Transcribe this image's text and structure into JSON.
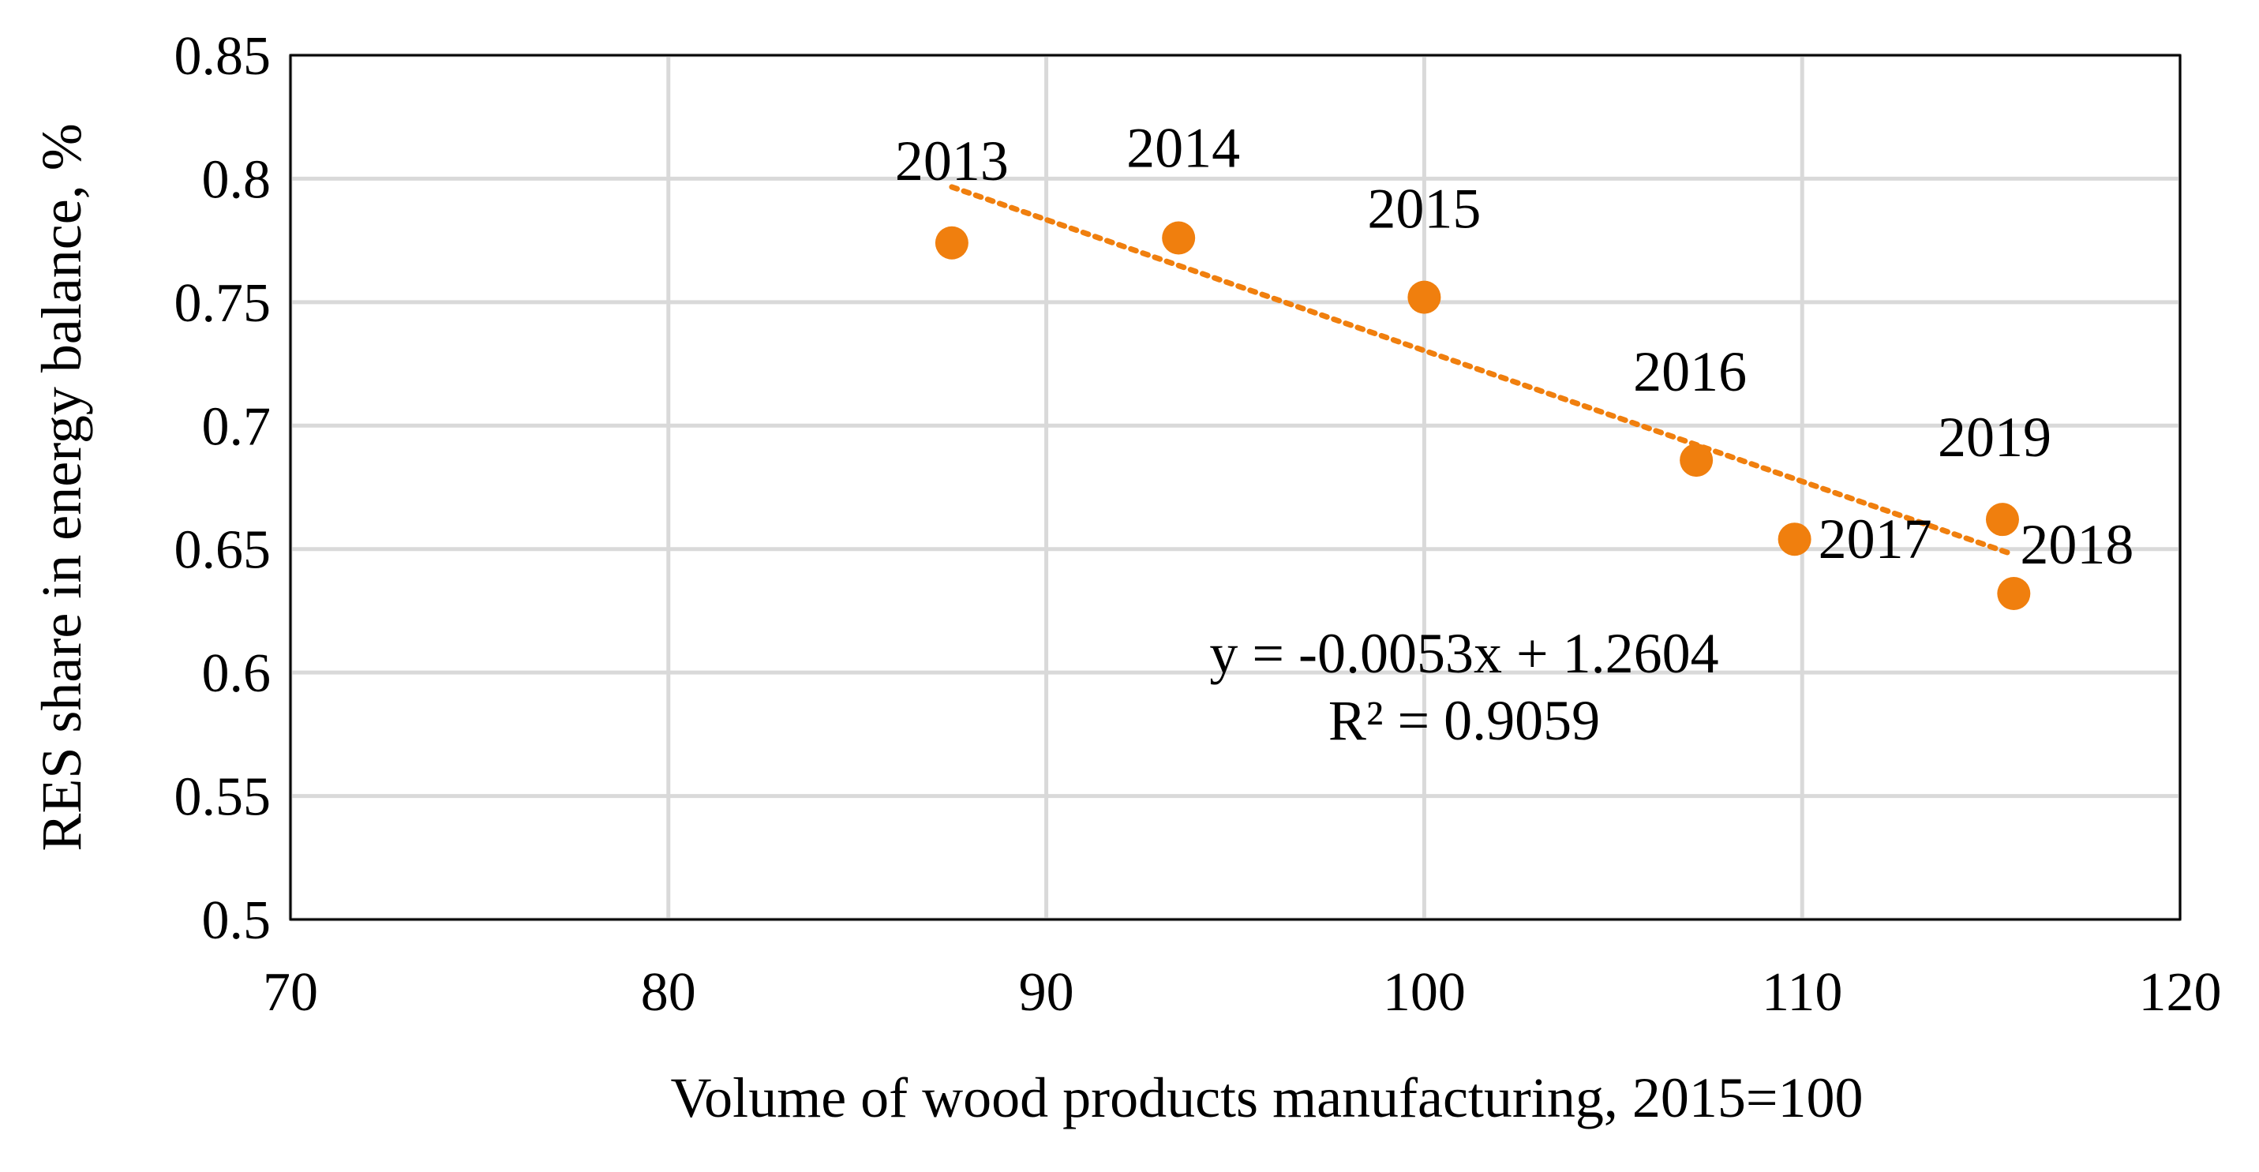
{
  "chart_data": {
    "type": "scatter",
    "title": "",
    "xlabel": "Volume of wood products manufacturing, 2015=100",
    "ylabel": "RES share in energy balance, %",
    "xlim": [
      70,
      120
    ],
    "ylim": [
      0.5,
      0.85
    ],
    "x_ticks": [
      70,
      80,
      90,
      100,
      110,
      120
    ],
    "x_tick_labels": [
      "70",
      "80",
      "90",
      "100",
      "110",
      "120"
    ],
    "y_ticks": [
      0.5,
      0.55,
      0.6,
      0.65,
      0.7,
      0.75,
      0.8,
      0.85
    ],
    "y_tick_labels": [
      "0.5",
      "0.55",
      "0.6",
      "0.65",
      "0.7",
      "0.75",
      "0.8",
      "0.85"
    ],
    "grid": true,
    "legend": "none",
    "marker_color": "#F07F0E",
    "points": [
      {
        "label": "2013",
        "x": 87.5,
        "y": 0.774
      },
      {
        "label": "2014",
        "x": 93.5,
        "y": 0.776
      },
      {
        "label": "2015",
        "x": 100.0,
        "y": 0.752
      },
      {
        "label": "2016",
        "x": 107.2,
        "y": 0.686
      },
      {
        "label": "2017",
        "x": 109.8,
        "y": 0.654
      },
      {
        "label": "2018",
        "x": 115.6,
        "y": 0.632
      },
      {
        "label": "2019",
        "x": 115.3,
        "y": 0.662
      }
    ],
    "trendline": {
      "type": "linear",
      "style": "dotted",
      "color": "#F07F0E",
      "slope": -0.0053,
      "intercept": 1.2604,
      "x_range": [
        87.5,
        115.6
      ],
      "equation_label": "y = -0.0053x + 1.2604",
      "r2_label": "R² = 0.9059"
    }
  }
}
